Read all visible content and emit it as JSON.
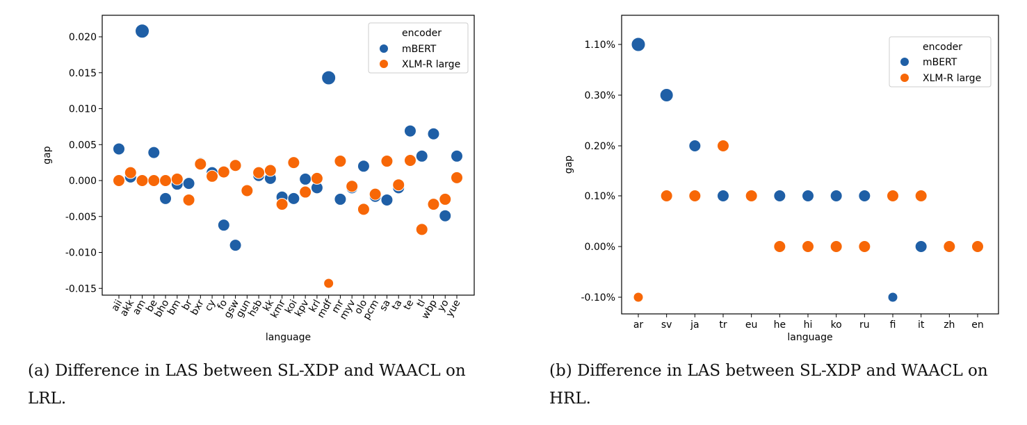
{
  "colors": {
    "mBERT": "#1f5fa6",
    "XLM-R large": "#f76707"
  },
  "captions": {
    "a": "(a) Difference in LAS between SL-XDP and WAACL on LRL.",
    "b": "(b) Difference in LAS between SL-XDP and WAACL on HRL."
  },
  "chart_data": [
    {
      "type": "scatter",
      "xlabel": "language",
      "ylabel": "gap",
      "ylim": [
        -0.016,
        0.0218
      ],
      "yticks": [
        "-0.015",
        "-0.010",
        "-0.005",
        "0.000",
        "0.005",
        "0.010",
        "0.015",
        "0.020"
      ],
      "grid": false,
      "legend": {
        "title": "encoder",
        "placement": "top-right"
      },
      "categories": [
        "aii",
        "akk",
        "am",
        "be",
        "bho",
        "bm",
        "br",
        "bxr",
        "cy",
        "fo",
        "gsw",
        "gun",
        "hsb",
        "kk",
        "kmr",
        "koi",
        "kpv",
        "krl",
        "mdf",
        "mr",
        "myv",
        "olo",
        "pcm",
        "sa",
        "ta",
        "te",
        "tl",
        "wbp",
        "yo",
        "yue"
      ],
      "series": [
        {
          "name": "mBERT",
          "values": [
            0.0044,
            0.0005,
            0.0208,
            0.0039,
            -0.0025,
            -0.0005,
            -0.0004,
            0.0024,
            0.0011,
            -0.0062,
            -0.009,
            -0.0014,
            0.0007,
            0.0003,
            -0.0023,
            -0.0025,
            0.0002,
            -0.001,
            0.0143,
            -0.0026,
            -0.001,
            0.002,
            -0.0022,
            -0.0027,
            -0.001,
            0.0069,
            0.0034,
            0.0065,
            -0.0049,
            0.0034
          ]
        },
        {
          "name": "XLM-R large",
          "values": [
            0.0,
            0.0011,
            0.0,
            0.0,
            0.0,
            0.0002,
            -0.0027,
            0.0023,
            0.0006,
            0.0012,
            0.0021,
            -0.0014,
            0.0011,
            0.0014,
            -0.0033,
            0.0025,
            -0.0016,
            0.0003,
            -0.0143,
            0.0027,
            -0.0008,
            -0.004,
            -0.0019,
            0.0027,
            -0.0006,
            0.0028,
            -0.0068,
            -0.0033,
            -0.0026,
            0.0004
          ]
        }
      ]
    },
    {
      "type": "scatter",
      "xlabel": "language",
      "ylabel": "gap",
      "yticks": [
        "-0.10%",
        "0.00%",
        "0.10%",
        "0.20%",
        "0.30%",
        "1.10%"
      ],
      "grid": false,
      "legend": {
        "title": "encoder",
        "placement": "top-right"
      },
      "categories": [
        "ar",
        "sv",
        "ja",
        "tr",
        "eu",
        "he",
        "hi",
        "ko",
        "ru",
        "fi",
        "it",
        "zh",
        "en"
      ],
      "series": [
        {
          "name": "mBERT",
          "values": [
            "1.10%",
            "0.30%",
            "0.20%",
            "0.10%",
            "0.10%",
            "0.10%",
            "0.10%",
            "0.10%",
            "0.10%",
            "-0.10%",
            "0.00%",
            "0.00%",
            "0.00%"
          ]
        },
        {
          "name": "XLM-R large",
          "values": [
            "-0.10%",
            "0.10%",
            "0.10%",
            "0.20%",
            "0.10%",
            "0.00%",
            "0.00%",
            "0.00%",
            "0.00%",
            "0.10%",
            "0.10%",
            "0.00%",
            "0.00%"
          ]
        }
      ]
    }
  ]
}
